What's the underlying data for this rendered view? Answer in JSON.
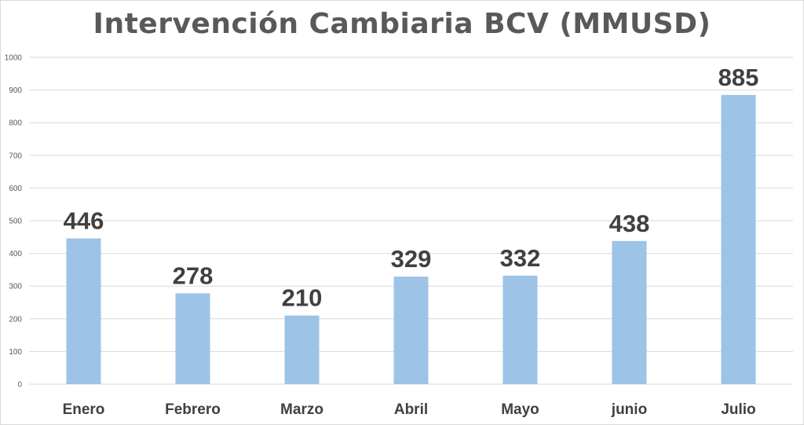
{
  "chart_data": {
    "type": "bar",
    "title": "Intervención Cambiaria BCV (MMUSD)",
    "categories": [
      "Enero",
      "Febrero",
      "Marzo",
      "Abril",
      "Mayo",
      "junio",
      "Julio"
    ],
    "values": [
      446,
      278,
      210,
      329,
      332,
      438,
      885
    ],
    "data_labels": [
      "446",
      "278",
      "210",
      "329",
      "332",
      "438",
      "885"
    ],
    "yticks": [
      "0",
      "100",
      "200",
      "300",
      "400",
      "500",
      "600",
      "700",
      "800",
      "900",
      "1000"
    ],
    "ylim": [
      0,
      1000
    ],
    "grid": true,
    "legend": false,
    "bar_color": "#9dc3e6",
    "grid_color": "#d9d9d9"
  }
}
